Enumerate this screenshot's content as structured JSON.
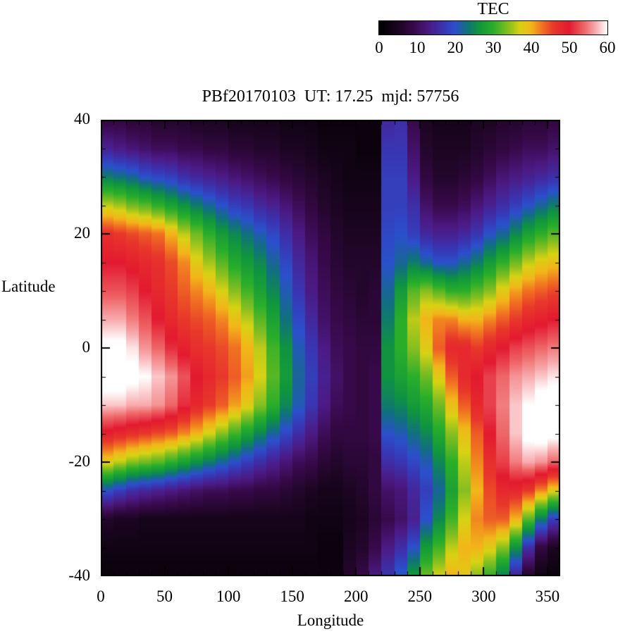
{
  "page": {
    "background": "#ffffff",
    "text_color": "#000000"
  },
  "chart_data": {
    "type": "heatmap",
    "title": "PBf20170103  UT: 17.25  mjd: 57756",
    "xlabel": "Longitude",
    "ylabel": "Latitude",
    "xlim": [
      0,
      360
    ],
    "ylim": [
      -40,
      40
    ],
    "x_ticks": [
      0,
      50,
      100,
      150,
      200,
      250,
      300,
      350
    ],
    "y_ticks": [
      40,
      20,
      0,
      -20,
      -40
    ],
    "x_minor_step": 10,
    "y_minor_step": 5,
    "grid_on": false,
    "colorbar": {
      "label": "TEC",
      "min": 0,
      "max": 60,
      "ticks": [
        0,
        10,
        20,
        30,
        40,
        50,
        60
      ],
      "position": "top-right"
    },
    "colormap_stops": [
      [
        0,
        "#000000"
      ],
      [
        5,
        "#1c0522"
      ],
      [
        9,
        "#38094a"
      ],
      [
        13,
        "#4c1a84"
      ],
      [
        17,
        "#3a35b2"
      ],
      [
        20,
        "#2b50cc"
      ],
      [
        23,
        "#11707f"
      ],
      [
        26,
        "#0f9440"
      ],
      [
        30,
        "#2aae2a"
      ],
      [
        34,
        "#86bf20"
      ],
      [
        37,
        "#d8d214"
      ],
      [
        40,
        "#f2b619"
      ],
      [
        43,
        "#f07022"
      ],
      [
        46,
        "#e8372b"
      ],
      [
        50,
        "#e31a30"
      ],
      [
        54,
        "#ee6668"
      ],
      [
        57,
        "#f7abae"
      ],
      [
        60,
        "#ffffff"
      ]
    ],
    "grid": {
      "lon_column_width_deg": 10,
      "lat_points": [
        40,
        35,
        30,
        25,
        20,
        15,
        10,
        5,
        0,
        -5,
        -10,
        -15,
        -20,
        -25,
        -30,
        -35,
        -40
      ],
      "columns": [
        [
          8,
          14,
          24,
          36,
          47,
          50,
          53,
          57,
          61,
          62,
          58,
          49,
          38,
          20,
          6,
          3,
          2
        ],
        [
          8,
          13,
          23,
          35,
          46,
          50,
          53,
          57,
          61,
          62,
          58,
          48,
          36,
          18,
          5,
          3,
          2
        ],
        [
          7,
          12,
          22,
          33,
          45,
          49,
          52,
          55,
          59,
          61,
          57,
          47,
          34,
          16,
          5,
          3,
          2
        ],
        [
          7,
          11,
          20,
          32,
          44,
          48,
          50,
          53,
          56,
          60,
          57,
          46,
          33,
          15,
          4,
          3,
          2
        ],
        [
          6,
          10,
          19,
          30,
          43,
          47,
          48,
          50,
          54,
          58,
          56,
          45,
          32,
          14,
          4,
          3,
          2
        ],
        [
          6,
          10,
          18,
          28,
          40,
          45,
          46,
          48,
          51,
          56,
          54,
          44,
          30,
          13,
          4,
          3,
          2
        ],
        [
          6,
          9,
          16,
          26,
          36,
          42,
          44,
          46,
          49,
          53,
          51,
          42,
          28,
          12,
          4,
          3,
          2
        ],
        [
          5,
          9,
          15,
          24,
          33,
          38,
          42,
          45,
          47,
          50,
          48,
          40,
          26,
          11,
          4,
          3,
          2
        ],
        [
          5,
          8,
          14,
          22,
          30,
          35,
          40,
          44,
          46,
          48,
          46,
          37,
          24,
          10,
          4,
          3,
          2
        ],
        [
          5,
          8,
          13,
          20,
          27,
          32,
          37,
          42,
          45,
          46,
          44,
          34,
          22,
          10,
          4,
          3,
          2
        ],
        [
          4,
          7,
          12,
          18,
          25,
          29,
          34,
          39,
          43,
          44,
          41,
          31,
          20,
          9,
          4,
          3,
          2
        ],
        [
          4,
          7,
          11,
          17,
          23,
          27,
          31,
          36,
          40,
          41,
          38,
          28,
          18,
          9,
          4,
          3,
          2
        ],
        [
          4,
          6,
          10,
          15,
          21,
          25,
          28,
          32,
          36,
          37,
          34,
          25,
          16,
          8,
          4,
          3,
          2
        ],
        [
          4,
          6,
          9,
          14,
          19,
          22,
          25,
          28,
          31,
          32,
          30,
          22,
          14,
          8,
          4,
          3,
          2
        ],
        [
          3,
          5,
          8,
          12,
          16,
          19,
          21,
          23,
          26,
          27,
          25,
          19,
          12,
          7,
          4,
          3,
          2
        ],
        [
          3,
          5,
          7,
          10,
          13,
          15,
          17,
          19,
          21,
          22,
          21,
          16,
          10,
          6,
          4,
          3,
          2
        ],
        [
          3,
          4,
          6,
          8,
          10,
          12,
          13,
          15,
          17,
          18,
          17,
          13,
          9,
          5,
          3,
          3,
          2
        ],
        [
          2,
          3,
          5,
          6,
          8,
          9,
          10,
          11,
          13,
          14,
          13,
          10,
          7,
          4,
          3,
          2,
          2
        ],
        [
          2,
          3,
          4,
          5,
          6,
          7,
          8,
          9,
          10,
          11,
          10,
          8,
          6,
          4,
          3,
          2,
          2
        ],
        [
          2,
          3,
          3,
          4,
          5,
          6,
          7,
          8,
          9,
          9,
          9,
          8,
          7,
          5,
          4,
          5,
          6
        ],
        [
          2,
          2,
          3,
          4,
          5,
          6,
          6,
          7,
          8,
          8,
          8,
          8,
          7,
          6,
          5,
          6,
          9
        ],
        [
          2,
          2,
          3,
          4,
          5,
          6,
          7,
          7,
          8,
          9,
          9,
          9,
          8,
          8,
          7,
          9,
          13
        ],
        [
          15,
          17,
          18,
          18,
          19,
          20,
          22,
          24,
          26,
          26,
          24,
          20,
          16,
          11,
          9,
          13,
          17
        ],
        [
          16,
          17,
          18,
          18,
          20,
          22,
          27,
          30,
          30,
          28,
          25,
          21,
          17,
          12,
          11,
          16,
          21
        ],
        [
          9,
          11,
          13,
          16,
          18,
          24,
          32,
          36,
          34,
          30,
          27,
          23,
          19,
          15,
          14,
          20,
          27
        ],
        [
          5,
          6,
          8,
          11,
          15,
          22,
          34,
          40,
          38,
          33,
          29,
          25,
          21,
          18,
          20,
          27,
          33
        ],
        [
          4,
          5,
          6,
          9,
          14,
          20,
          32,
          42,
          44,
          38,
          33,
          29,
          25,
          22,
          25,
          31,
          37
        ],
        [
          4,
          5,
          6,
          9,
          14,
          20,
          30,
          42,
          48,
          44,
          39,
          34,
          30,
          28,
          31,
          36,
          40
        ],
        [
          4,
          5,
          7,
          10,
          15,
          22,
          30,
          40,
          48,
          48,
          44,
          39,
          36,
          34,
          37,
          40,
          38
        ],
        [
          5,
          6,
          8,
          12,
          17,
          24,
          32,
          40,
          46,
          50,
          48,
          44,
          42,
          40,
          42,
          40,
          34
        ],
        [
          5,
          7,
          10,
          14,
          20,
          27,
          34,
          42,
          48,
          52,
          52,
          50,
          47,
          45,
          44,
          38,
          30
        ],
        [
          6,
          8,
          12,
          16,
          22,
          30,
          38,
          44,
          50,
          54,
          55,
          54,
          52,
          48,
          44,
          34,
          24
        ],
        [
          6,
          9,
          13,
          18,
          25,
          33,
          41,
          46,
          52,
          56,
          58,
          58,
          55,
          48,
          40,
          26,
          14
        ],
        [
          7,
          10,
          14,
          20,
          28,
          36,
          43,
          48,
          53,
          57,
          60,
          61,
          57,
          46,
          32,
          16,
          6
        ],
        [
          7,
          10,
          15,
          22,
          30,
          38,
          44,
          49,
          54,
          58,
          62,
          62,
          56,
          42,
          24,
          8,
          3
        ],
        [
          8,
          11,
          16,
          24,
          32,
          39,
          45,
          50,
          55,
          59,
          62,
          61,
          54,
          38,
          18,
          5,
          2
        ]
      ]
    }
  }
}
